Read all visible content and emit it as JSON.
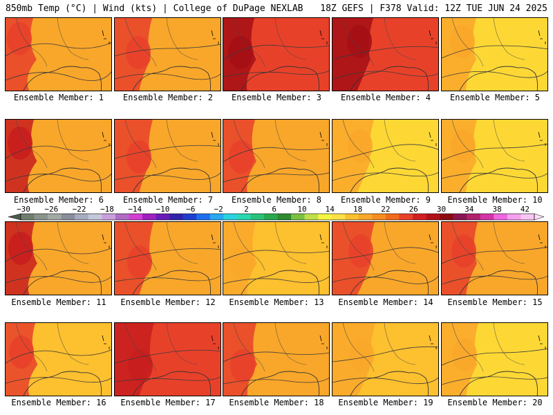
{
  "header": {
    "left": "850mb Temp (°C) | Wind (kts) | College of DuPage NEXLAB",
    "right": "18Z GEFS | F378 Valid: 12Z TUE JUN 24 2025"
  },
  "member_caption_prefix": "Ensemble Member:",
  "members": [
    {
      "id": "1",
      "palette": [
        "#f9a72a",
        "#e8412a"
      ]
    },
    {
      "id": "2",
      "palette": [
        "#f9a72a",
        "#e8412a"
      ]
    },
    {
      "id": "3",
      "palette": [
        "#e8412a",
        "#a50f15"
      ]
    },
    {
      "id": "4",
      "palette": [
        "#e8412a",
        "#a50f15"
      ]
    },
    {
      "id": "5",
      "palette": [
        "#fdd835",
        "#f9a72a"
      ]
    },
    {
      "id": "6",
      "palette": [
        "#f9a72a",
        "#c81e1e"
      ]
    },
    {
      "id": "7",
      "palette": [
        "#f9a72a",
        "#e8412a"
      ]
    },
    {
      "id": "8",
      "palette": [
        "#f9a72a",
        "#e8412a"
      ]
    },
    {
      "id": "9",
      "palette": [
        "#fdd835",
        "#f9a72a"
      ]
    },
    {
      "id": "10",
      "palette": [
        "#fdd835",
        "#f9a72a"
      ]
    },
    {
      "id": "11",
      "palette": [
        "#f9a72a",
        "#c81e1e"
      ]
    },
    {
      "id": "12",
      "palette": [
        "#f9a72a",
        "#e8412a"
      ]
    },
    {
      "id": "13",
      "palette": [
        "#fdc02f",
        "#f9a72a"
      ]
    },
    {
      "id": "14",
      "palette": [
        "#f9a72a",
        "#e8412a"
      ]
    },
    {
      "id": "15",
      "palette": [
        "#f9a72a",
        "#e8412a"
      ]
    },
    {
      "id": "16",
      "palette": [
        "#fdc02f",
        "#e8412a"
      ]
    },
    {
      "id": "17",
      "palette": [
        "#e8412a",
        "#c81e1e"
      ]
    },
    {
      "id": "18",
      "palette": [
        "#f9a72a",
        "#e8412a"
      ]
    },
    {
      "id": "19",
      "palette": [
        "#fdc02f",
        "#f9a72a"
      ]
    },
    {
      "id": "20",
      "palette": [
        "#fdd835",
        "#f9a72a"
      ]
    }
  ],
  "colorbar": {
    "labels": [
      "−30",
      "−26",
      "−22",
      "−18",
      "−14",
      "−10",
      "−6",
      "−2",
      "2",
      "6",
      "10",
      "14",
      "18",
      "22",
      "26",
      "30",
      "34",
      "38",
      "42"
    ],
    "colors": [
      "#6f7d6f",
      "#8b948b",
      "#a2a9a2",
      "#8a8d9a",
      "#a8acc0",
      "#c3c7d8",
      "#c9a0dc",
      "#b06cc4",
      "#d33fd3",
      "#a020c0",
      "#6a1cb8",
      "#3322aa",
      "#1f3fcf",
      "#1e6ff0",
      "#26a9f0",
      "#29d2e0",
      "#2ad7b0",
      "#27c27a",
      "#2aa84f",
      "#2e8b2e",
      "#7bc142",
      "#bfe04a",
      "#f5f542",
      "#fde047",
      "#fbc02d",
      "#f9a72a",
      "#f78d22",
      "#f26b1d",
      "#e8412a",
      "#d32020",
      "#b3121a",
      "#8c0a10",
      "#8a1552",
      "#b0226e",
      "#d433a8",
      "#f066e0",
      "#f5a0ee",
      "#f9c6f3"
    ]
  }
}
